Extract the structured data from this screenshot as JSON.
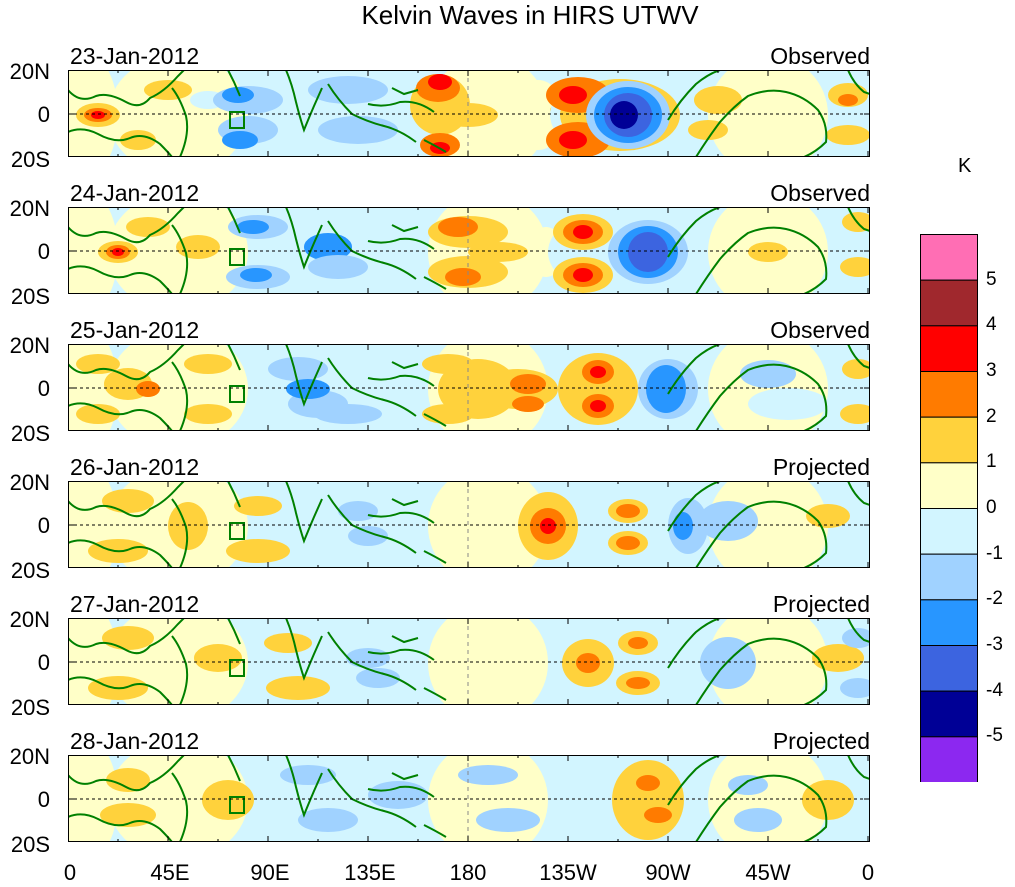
{
  "title": "Kelvin Waves in HIRS UTWV",
  "panels": [
    {
      "date": "23-Jan-2012",
      "status": "Observed"
    },
    {
      "date": "24-Jan-2012",
      "status": "Observed"
    },
    {
      "date": "25-Jan-2012",
      "status": "Observed"
    },
    {
      "date": "26-Jan-2012",
      "status": "Projected"
    },
    {
      "date": "27-Jan-2012",
      "status": "Projected"
    },
    {
      "date": "28-Jan-2012",
      "status": "Projected"
    }
  ],
  "lat_labels": [
    "20N",
    "0",
    "20S"
  ],
  "lon_labels": [
    "0",
    "45E",
    "90E",
    "135E",
    "180",
    "135W",
    "90W",
    "45W",
    "0"
  ],
  "colorbar": {
    "unit": "K",
    "levels": [
      5,
      4,
      3,
      2,
      1,
      0,
      -1,
      -2,
      -3,
      -4,
      -5
    ],
    "level_labels": [
      "5",
      "4",
      "3",
      "2",
      "1",
      "0",
      "-1",
      "-2",
      "-3",
      "-4",
      "-5"
    ],
    "colors": [
      "#ff6eb4",
      "#a0282d",
      "#ff0000",
      "#ff7b00",
      "#ffd23c",
      "#ffffc8",
      "#d2f5ff",
      "#a0d2ff",
      "#2896ff",
      "#3c64e0",
      "#000096",
      "#8c28f0"
    ]
  },
  "colors": {
    "coast": "#008000",
    "dashed": "#000000"
  }
}
